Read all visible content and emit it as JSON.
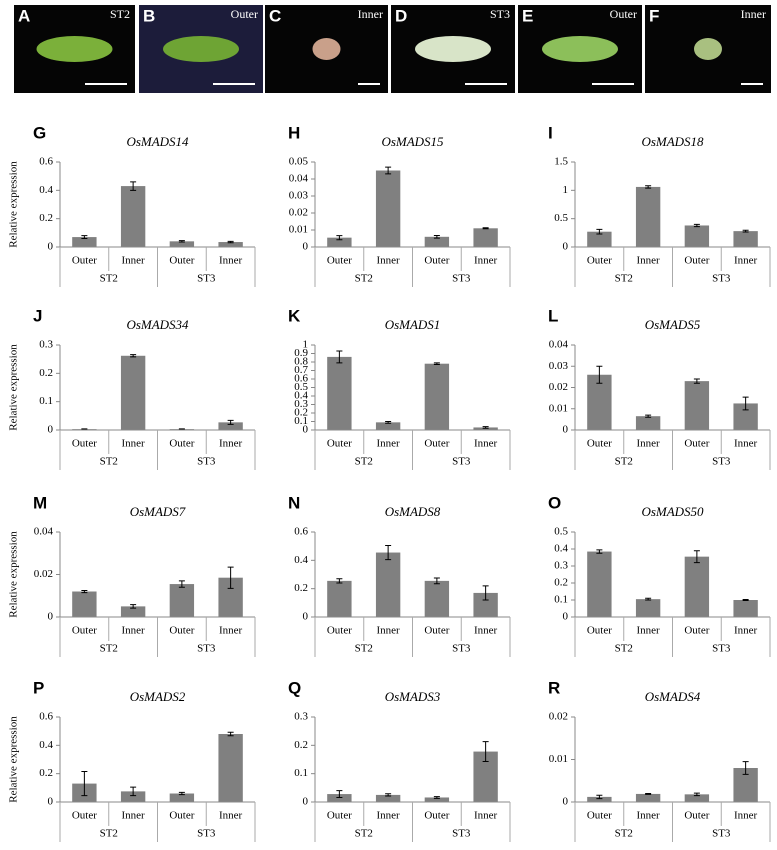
{
  "photo_panels": [
    {
      "letter": "A",
      "label": "ST2"
    },
    {
      "letter": "B",
      "label": "Outer"
    },
    {
      "letter": "C",
      "label": "Inner"
    },
    {
      "letter": "D",
      "label": "ST3"
    },
    {
      "letter": "E",
      "label": "Outer"
    },
    {
      "letter": "F",
      "label": "Inner"
    }
  ],
  "chart_data": [
    {
      "type": "bar",
      "panel": "G",
      "title": "OsMADS14",
      "y_label": "Relative expression",
      "categories": [
        "Outer",
        "Inner",
        "Outer",
        "Inner"
      ],
      "groups": [
        "ST2",
        "ST3"
      ],
      "values": [
        0.07,
        0.43,
        0.04,
        0.035
      ],
      "errors": [
        0.01,
        0.03,
        0.005,
        0.005
      ],
      "color": "#808080",
      "ylim": [
        0,
        0.6
      ],
      "yticks": [
        0,
        0.2,
        0.4,
        0.6
      ]
    },
    {
      "type": "bar",
      "panel": "H",
      "title": "OsMADS15",
      "categories": [
        "Outer",
        "Inner",
        "Outer",
        "Inner"
      ],
      "groups": [
        "ST2",
        "ST3"
      ],
      "values": [
        0.0055,
        0.045,
        0.006,
        0.011
      ],
      "errors": [
        0.0012,
        0.002,
        0.0008,
        0.0003
      ],
      "color": "#808080",
      "ylim": [
        0,
        0.05
      ],
      "yticks": [
        0,
        0.01,
        0.02,
        0.03,
        0.04,
        0.05
      ]
    },
    {
      "type": "bar",
      "panel": "I",
      "title": "OsMADS18",
      "categories": [
        "Outer",
        "Inner",
        "Outer",
        "Inner"
      ],
      "groups": [
        "ST2",
        "ST3"
      ],
      "values": [
        0.27,
        1.06,
        0.38,
        0.28
      ],
      "errors": [
        0.04,
        0.02,
        0.02,
        0.015
      ],
      "color": "#808080",
      "ylim": [
        0,
        1.5
      ],
      "yticks": [
        0,
        0.5,
        1,
        1.5
      ]
    },
    {
      "type": "bar",
      "panel": "J",
      "title": "OsMADS34",
      "y_label": "Relative expression",
      "categories": [
        "Outer",
        "Inner",
        "Outer",
        "Inner"
      ],
      "groups": [
        "ST2",
        "ST3"
      ],
      "values": [
        0.003,
        0.262,
        0.003,
        0.027
      ],
      "errors": [
        0.001,
        0.004,
        0.001,
        0.007
      ],
      "color": "#808080",
      "ylim": [
        0,
        0.3
      ],
      "yticks": [
        0,
        0.1,
        0.2,
        0.3
      ]
    },
    {
      "type": "bar",
      "panel": "K",
      "title": "OsMADS1",
      "categories": [
        "Outer",
        "Inner",
        "Outer",
        "Inner"
      ],
      "groups": [
        "ST2",
        "ST3"
      ],
      "values": [
        0.86,
        0.09,
        0.78,
        0.03
      ],
      "errors": [
        0.07,
        0.01,
        0.01,
        0.01
      ],
      "color": "#808080",
      "ylim": [
        0,
        1
      ],
      "yticks": [
        0,
        0.1,
        0.2,
        0.3,
        0.4,
        0.5,
        0.6,
        0.7,
        0.8,
        0.9,
        1
      ]
    },
    {
      "type": "bar",
      "panel": "L",
      "title": "OsMADS5",
      "categories": [
        "Outer",
        "Inner",
        "Outer",
        "Inner"
      ],
      "groups": [
        "ST2",
        "ST3"
      ],
      "values": [
        0.026,
        0.0065,
        0.023,
        0.0125
      ],
      "errors": [
        0.004,
        0.0005,
        0.001,
        0.003
      ],
      "color": "#808080",
      "ylim": [
        0,
        0.04
      ],
      "yticks": [
        0,
        0.01,
        0.02,
        0.03,
        0.04
      ]
    },
    {
      "type": "bar",
      "panel": "M",
      "title": "OsMADS7",
      "y_label": "Relative expression",
      "categories": [
        "Outer",
        "Inner",
        "Outer",
        "Inner"
      ],
      "groups": [
        "ST2",
        "ST3"
      ],
      "values": [
        0.012,
        0.005,
        0.0155,
        0.0185
      ],
      "errors": [
        0.0005,
        0.0008,
        0.0015,
        0.005
      ],
      "color": "#808080",
      "ylim": [
        0,
        0.04
      ],
      "yticks": [
        0,
        0.02,
        0.04
      ]
    },
    {
      "type": "bar",
      "panel": "N",
      "title": "OsMADS8",
      "categories": [
        "Outer",
        "Inner",
        "Outer",
        "Inner"
      ],
      "groups": [
        "ST2",
        "ST3"
      ],
      "values": [
        0.255,
        0.455,
        0.255,
        0.17
      ],
      "errors": [
        0.015,
        0.05,
        0.02,
        0.05
      ],
      "color": "#808080",
      "ylim": [
        0,
        0.6
      ],
      "yticks": [
        0,
        0.2,
        0.4,
        0.6
      ]
    },
    {
      "type": "bar",
      "panel": "O",
      "title": "OsMADS50",
      "categories": [
        "Outer",
        "Inner",
        "Outer",
        "Inner"
      ],
      "groups": [
        "ST2",
        "ST3"
      ],
      "values": [
        0.385,
        0.105,
        0.355,
        0.1
      ],
      "errors": [
        0.01,
        0.005,
        0.035,
        0.003
      ],
      "color": "#808080",
      "ylim": [
        0,
        0.5
      ],
      "yticks": [
        0,
        0.1,
        0.2,
        0.3,
        0.4,
        0.5
      ]
    },
    {
      "type": "bar",
      "panel": "P",
      "title": "OsMADS2",
      "y_label": "Relative expression",
      "categories": [
        "Outer",
        "Inner",
        "Outer",
        "Inner"
      ],
      "groups": [
        "ST2",
        "ST3"
      ],
      "values": [
        0.13,
        0.075,
        0.06,
        0.48
      ],
      "errors": [
        0.085,
        0.03,
        0.008,
        0.012
      ],
      "color": "#808080",
      "ylim": [
        0,
        0.6
      ],
      "yticks": [
        0,
        0.2,
        0.4,
        0.6
      ]
    },
    {
      "type": "bar",
      "panel": "Q",
      "title": "OsMADS3",
      "categories": [
        "Outer",
        "Inner",
        "Outer",
        "Inner"
      ],
      "groups": [
        "ST2",
        "ST3"
      ],
      "values": [
        0.028,
        0.025,
        0.016,
        0.178
      ],
      "errors": [
        0.012,
        0.004,
        0.003,
        0.035
      ],
      "color": "#808080",
      "ylim": [
        0,
        0.3
      ],
      "yticks": [
        0,
        0.1,
        0.2,
        0.3
      ]
    },
    {
      "type": "bar",
      "panel": "R",
      "title": "OsMADS4",
      "categories": [
        "Outer",
        "Inner",
        "Outer",
        "Inner"
      ],
      "groups": [
        "ST2",
        "ST3"
      ],
      "values": [
        0.0012,
        0.0019,
        0.0018,
        0.008
      ],
      "errors": [
        0.0004,
        0.0001,
        0.0003,
        0.0015
      ],
      "color": "#808080",
      "ylim": [
        0,
        0.02
      ],
      "yticks": [
        0,
        0.01,
        0.02
      ]
    }
  ]
}
